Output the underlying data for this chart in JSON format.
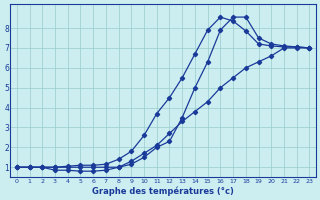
{
  "xlabel": "Graphe des températures (°c)",
  "bg_color": "#cceef0",
  "grid_color": "#99cccc",
  "line_color": "#1a3a9a",
  "xlim": [
    -0.5,
    23.5
  ],
  "ylim": [
    0.5,
    9.2
  ],
  "xticks": [
    0,
    1,
    2,
    3,
    4,
    5,
    6,
    7,
    8,
    9,
    10,
    11,
    12,
    13,
    14,
    15,
    16,
    17,
    18,
    19,
    20,
    21,
    22,
    23
  ],
  "yticks": [
    1,
    2,
    3,
    4,
    5,
    6,
    7,
    8
  ],
  "curve1_x": [
    0,
    1,
    2,
    3,
    4,
    5,
    6,
    7,
    8,
    9,
    10,
    11,
    12,
    13,
    14,
    15,
    16,
    17,
    18,
    19,
    20,
    21,
    22,
    23
  ],
  "curve1_y": [
    1.0,
    1.0,
    1.0,
    1.0,
    1.0,
    1.0,
    1.0,
    1.0,
    1.0,
    1.3,
    1.7,
    2.1,
    2.7,
    3.3,
    3.8,
    4.3,
    5.0,
    5.5,
    6.0,
    6.3,
    6.6,
    7.0,
    7.0,
    7.0
  ],
  "curve2_x": [
    0,
    1,
    2,
    3,
    4,
    5,
    6,
    7,
    8,
    9,
    10,
    11,
    12,
    13,
    14,
    15,
    16,
    17,
    18,
    19,
    20,
    21,
    22,
    23
  ],
  "curve2_y": [
    1.0,
    1.0,
    1.0,
    0.85,
    0.85,
    0.8,
    0.8,
    0.85,
    1.0,
    1.15,
    1.5,
    2.0,
    2.3,
    3.5,
    5.0,
    6.3,
    7.9,
    8.55,
    8.55,
    7.5,
    7.2,
    7.1,
    7.05,
    7.0
  ],
  "curve3_x": [
    0,
    1,
    2,
    3,
    4,
    5,
    6,
    7,
    8,
    9,
    10,
    11,
    12,
    13,
    14,
    15,
    16,
    17,
    18,
    19,
    20,
    21,
    22,
    23
  ],
  "curve3_y": [
    1.0,
    1.0,
    1.0,
    1.0,
    1.05,
    1.1,
    1.1,
    1.15,
    1.4,
    1.8,
    2.6,
    3.7,
    4.5,
    5.5,
    6.7,
    7.9,
    8.55,
    8.35,
    7.85,
    7.2,
    7.1,
    7.05,
    7.05,
    7.0
  ],
  "marker": "D",
  "markersize": 2.2,
  "linewidth": 0.9
}
